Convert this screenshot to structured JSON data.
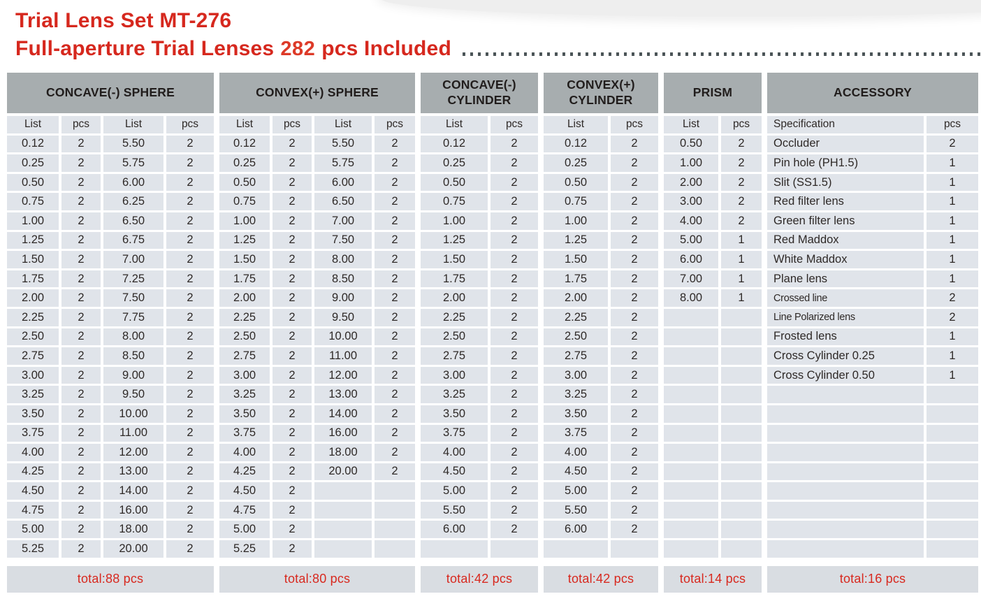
{
  "header": {
    "title": "Trial Lens Set MT-276",
    "subtitle_main": "Full-aperture Trial Lenses",
    "subtitle_count": "282",
    "subtitle_suffix": "pcs Included"
  },
  "colors": {
    "accent_red": "#d6281e",
    "header_gray": "#a7adaf",
    "cell_gray": "#e0e4ea",
    "total_bar_gray": "#d9dde2",
    "text_dark": "#2e2927",
    "dot_leader": "#4b5457"
  },
  "table": {
    "groups": [
      {
        "id": "concave-sphere",
        "title": "CONCAVE(-)  SPHERE",
        "columns": [
          "List",
          "pcs",
          "List",
          "pcs"
        ],
        "rows": [
          [
            "0.12",
            "2",
            "5.50",
            "2"
          ],
          [
            "0.25",
            "2",
            "5.75",
            "2"
          ],
          [
            "0.50",
            "2",
            "6.00",
            "2"
          ],
          [
            "0.75",
            "2",
            "6.25",
            "2"
          ],
          [
            "1.00",
            "2",
            "6.50",
            "2"
          ],
          [
            "1.25",
            "2",
            "6.75",
            "2"
          ],
          [
            "1.50",
            "2",
            "7.00",
            "2"
          ],
          [
            "1.75",
            "2",
            "7.25",
            "2"
          ],
          [
            "2.00",
            "2",
            "7.50",
            "2"
          ],
          [
            "2.25",
            "2",
            "7.75",
            "2"
          ],
          [
            "2.50",
            "2",
            "8.00",
            "2"
          ],
          [
            "2.75",
            "2",
            "8.50",
            "2"
          ],
          [
            "3.00",
            "2",
            "9.00",
            "2"
          ],
          [
            "3.25",
            "2",
            "9.50",
            "2"
          ],
          [
            "3.50",
            "2",
            "10.00",
            "2"
          ],
          [
            "3.75",
            "2",
            "11.00",
            "2"
          ],
          [
            "4.00",
            "2",
            "12.00",
            "2"
          ],
          [
            "4.25",
            "2",
            "13.00",
            "2"
          ],
          [
            "4.50",
            "2",
            "14.00",
            "2"
          ],
          [
            "4.75",
            "2",
            "16.00",
            "2"
          ],
          [
            "5.00",
            "2",
            "18.00",
            "2"
          ],
          [
            "5.25",
            "2",
            "20.00",
            "2"
          ]
        ],
        "total": "total:88 pcs"
      },
      {
        "id": "convex-sphere",
        "title": "CONVEX(+) SPHERE",
        "columns": [
          "List",
          "pcs",
          "List",
          "pcs"
        ],
        "rows": [
          [
            "0.12",
            "2",
            "5.50",
            "2"
          ],
          [
            "0.25",
            "2",
            "5.75",
            "2"
          ],
          [
            "0.50",
            "2",
            "6.00",
            "2"
          ],
          [
            "0.75",
            "2",
            "6.50",
            "2"
          ],
          [
            "1.00",
            "2",
            "7.00",
            "2"
          ],
          [
            "1.25",
            "2",
            "7.50",
            "2"
          ],
          [
            "1.50",
            "2",
            "8.00",
            "2"
          ],
          [
            "1.75",
            "2",
            "8.50",
            "2"
          ],
          [
            "2.00",
            "2",
            "9.00",
            "2"
          ],
          [
            "2.25",
            "2",
            "9.50",
            "2"
          ],
          [
            "2.50",
            "2",
            "10.00",
            "2"
          ],
          [
            "2.75",
            "2",
            "11.00",
            "2"
          ],
          [
            "3.00",
            "2",
            "12.00",
            "2"
          ],
          [
            "3.25",
            "2",
            "13.00",
            "2"
          ],
          [
            "3.50",
            "2",
            "14.00",
            "2"
          ],
          [
            "3.75",
            "2",
            "16.00",
            "2"
          ],
          [
            "4.00",
            "2",
            "18.00",
            "2"
          ],
          [
            "4.25",
            "2",
            "20.00",
            "2"
          ],
          [
            "4.50",
            "2",
            "",
            ""
          ],
          [
            "4.75",
            "2",
            "",
            ""
          ],
          [
            "5.00",
            "2",
            "",
            ""
          ],
          [
            "5.25",
            "2",
            "",
            ""
          ]
        ],
        "total": "total:80 pcs"
      },
      {
        "id": "concave-cylinder",
        "title": "CONCAVE(-)\nCYLINDER",
        "columns": [
          "List",
          "pcs"
        ],
        "rows": [
          [
            "0.12",
            "2"
          ],
          [
            "0.25",
            "2"
          ],
          [
            "0.50",
            "2"
          ],
          [
            "0.75",
            "2"
          ],
          [
            "1.00",
            "2"
          ],
          [
            "1.25",
            "2"
          ],
          [
            "1.50",
            "2"
          ],
          [
            "1.75",
            "2"
          ],
          [
            "2.00",
            "2"
          ],
          [
            "2.25",
            "2"
          ],
          [
            "2.50",
            "2"
          ],
          [
            "2.75",
            "2"
          ],
          [
            "3.00",
            "2"
          ],
          [
            "3.25",
            "2"
          ],
          [
            "3.50",
            "2"
          ],
          [
            "3.75",
            "2"
          ],
          [
            "4.00",
            "2"
          ],
          [
            "4.50",
            "2"
          ],
          [
            "5.00",
            "2"
          ],
          [
            "5.50",
            "2"
          ],
          [
            "6.00",
            "2"
          ],
          [
            "",
            ""
          ]
        ],
        "total": "total:42 pcs"
      },
      {
        "id": "convex-cylinder",
        "title": "CONVEX(+)\nCYLINDER",
        "columns": [
          "List",
          "pcs"
        ],
        "rows": [
          [
            "0.12",
            "2"
          ],
          [
            "0.25",
            "2"
          ],
          [
            "0.50",
            "2"
          ],
          [
            "0.75",
            "2"
          ],
          [
            "1.00",
            "2"
          ],
          [
            "1.25",
            "2"
          ],
          [
            "1.50",
            "2"
          ],
          [
            "1.75",
            "2"
          ],
          [
            "2.00",
            "2"
          ],
          [
            "2.25",
            "2"
          ],
          [
            "2.50",
            "2"
          ],
          [
            "2.75",
            "2"
          ],
          [
            "3.00",
            "2"
          ],
          [
            "3.25",
            "2"
          ],
          [
            "3.50",
            "2"
          ],
          [
            "3.75",
            "2"
          ],
          [
            "4.00",
            "2"
          ],
          [
            "4.50",
            "2"
          ],
          [
            "5.00",
            "2"
          ],
          [
            "5.50",
            "2"
          ],
          [
            "6.00",
            "2"
          ],
          [
            "",
            ""
          ]
        ],
        "total": "total:42 pcs"
      },
      {
        "id": "prism",
        "title": "PRISM",
        "columns": [
          "List",
          "pcs"
        ],
        "rows": [
          [
            "0.50",
            "2"
          ],
          [
            "1.00",
            "2"
          ],
          [
            "2.00",
            "2"
          ],
          [
            "3.00",
            "2"
          ],
          [
            "4.00",
            "2"
          ],
          [
            "5.00",
            "1"
          ],
          [
            "6.00",
            "1"
          ],
          [
            "7.00",
            "1"
          ],
          [
            "8.00",
            "1"
          ],
          [
            "",
            ""
          ],
          [
            "",
            ""
          ],
          [
            "",
            ""
          ],
          [
            "",
            ""
          ],
          [
            "",
            ""
          ],
          [
            "",
            ""
          ],
          [
            "",
            ""
          ],
          [
            "",
            ""
          ],
          [
            "",
            ""
          ],
          [
            "",
            ""
          ],
          [
            "",
            ""
          ],
          [
            "",
            ""
          ],
          [
            "",
            ""
          ]
        ],
        "total": "total:14 pcs"
      },
      {
        "id": "accessory",
        "title": "ACCESSORY",
        "columns": [
          "Specification",
          "pcs"
        ],
        "rows": [
          [
            "Occluder",
            "2"
          ],
          [
            "Pin hole  (PH1.5)",
            "1"
          ],
          [
            "Slit  (SS1.5)",
            "1"
          ],
          [
            "Red filter lens",
            "1"
          ],
          [
            "Green filter lens",
            "1"
          ],
          [
            "Red Maddox",
            "1"
          ],
          [
            "White Maddox",
            "1"
          ],
          [
            "Plane lens",
            "1"
          ],
          [
            "Crossed line",
            "2"
          ],
          [
            "Line Polarized lens",
            "2"
          ],
          [
            "Frosted lens",
            "1"
          ],
          [
            "Cross Cylinder 0.25",
            "1"
          ],
          [
            "Cross Cylinder 0.50",
            "1"
          ],
          [
            "",
            ""
          ],
          [
            "",
            ""
          ],
          [
            "",
            ""
          ],
          [
            "",
            ""
          ],
          [
            "",
            ""
          ],
          [
            "",
            ""
          ],
          [
            "",
            ""
          ],
          [
            "",
            ""
          ],
          [
            "",
            ""
          ]
        ],
        "total": "total:16 pcs"
      }
    ]
  }
}
